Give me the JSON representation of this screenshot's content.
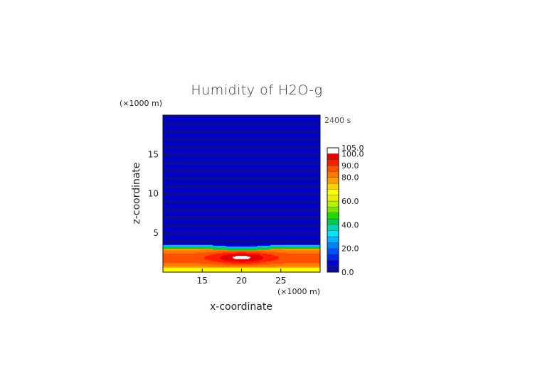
{
  "chart_data": {
    "type": "heatmap",
    "title": "Humidity of H2O-g",
    "time_label": "2400 s",
    "xlabel": "x-coordinate",
    "ylabel": "z-coordinate",
    "x_unit": "(×1000 m)",
    "y_unit": "(×1000 m)",
    "xlim": [
      10,
      30
    ],
    "ylim": [
      0,
      20
    ],
    "x_ticks": [
      15,
      20,
      25
    ],
    "y_ticks": [
      5,
      10,
      15
    ],
    "colorbar": {
      "levels": [
        0,
        5,
        10,
        15,
        20,
        25,
        30,
        35,
        40,
        45,
        50,
        55,
        60,
        65,
        70,
        75,
        80,
        85,
        90,
        95,
        100,
        105
      ],
      "labels": [
        "0.0",
        "20.0",
        "40.0",
        "60.0",
        "80.0",
        "90.0",
        "100.0",
        "105.0"
      ],
      "colors": [
        "#0a0aa0",
        "#0000c8",
        "#0028e6",
        "#0050ff",
        "#0082ff",
        "#00b4ff",
        "#00e6ff",
        "#00d2b4",
        "#00c850",
        "#1edc00",
        "#78e600",
        "#b4f000",
        "#e6f000",
        "#ffff00",
        "#ffd200",
        "#ffa000",
        "#ff7800",
        "#ff5000",
        "#ff1e00",
        "#e60000",
        "#ffffff"
      ]
    },
    "field": {
      "background_value": 2,
      "surface_layer": {
        "z_top": 0.6,
        "value": 65
      },
      "moist_layer": {
        "z_top": 3.0,
        "value_range": [
          70,
          100
        ]
      },
      "peak": {
        "x": 20,
        "z": 2.0,
        "value": 102
      }
    }
  }
}
